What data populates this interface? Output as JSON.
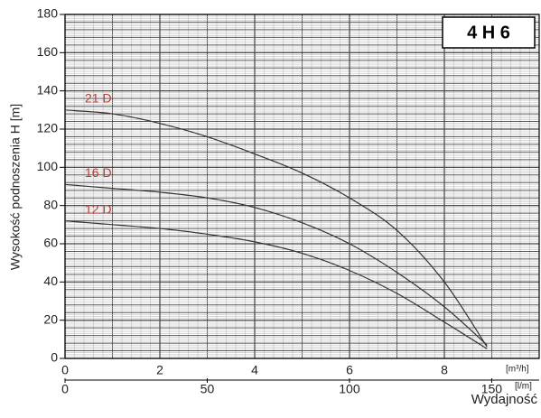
{
  "chart_data": {
    "type": "line",
    "title": "4 H 6",
    "y_label": "Wysokość podnoszenia H [m]",
    "x_label": "Wydajność",
    "x_unit": "[m³/h]",
    "x2_unit": "[l/m]",
    "xlim": [
      0,
      10
    ],
    "xticks": [
      0,
      2,
      4,
      6,
      8
    ],
    "x2lim": [
      0,
      166.7
    ],
    "x2ticks": [
      0,
      50,
      100,
      150
    ],
    "ylim": [
      0,
      180
    ],
    "yticks": [
      0,
      20,
      40,
      60,
      80,
      100,
      120,
      140,
      160,
      180
    ],
    "grid": true,
    "series_label_color": "#c0392b",
    "x": [
      0,
      1,
      2,
      3,
      4,
      5,
      6,
      7,
      8,
      8.9
    ],
    "series": [
      {
        "name": "21 D",
        "color": "#333333",
        "values": [
          130,
          128,
          123,
          116,
          107,
          97,
          84,
          67,
          40,
          6
        ]
      },
      {
        "name": "16 D",
        "color": "#333333",
        "values": [
          91,
          89,
          87,
          84,
          79,
          71,
          60,
          45,
          27,
          7
        ]
      },
      {
        "name": "12 D",
        "color": "#333333",
        "values": [
          72,
          70,
          68,
          65,
          61,
          55,
          46,
          34,
          19,
          5
        ]
      }
    ]
  }
}
